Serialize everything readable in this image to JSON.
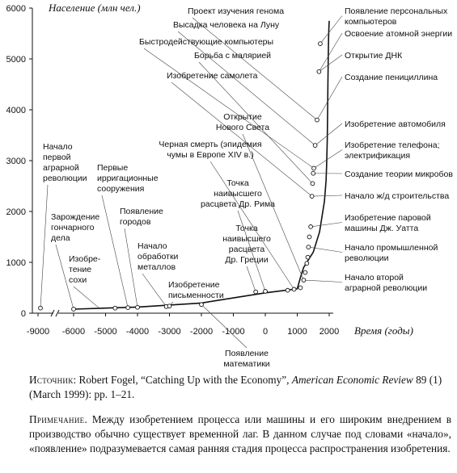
{
  "chart_data": {
    "type": "line",
    "ylabel": "Население (млн чел.)",
    "xlabel": "Время (годы)",
    "xlim": [
      -9000,
      2000
    ],
    "ylim": [
      0,
      6000
    ],
    "x_ticks": [
      -9000,
      -6000,
      -5000,
      -4000,
      -3000,
      -2000,
      -1000,
      0,
      1000,
      2000
    ],
    "x_tick_labels": [
      "-9000",
      "-6000",
      "-5000",
      "-4000",
      "-3000",
      "-2000",
      "-1000",
      "0",
      "1000",
      "2000"
    ],
    "y_ticks": [
      0,
      1000,
      2000,
      3000,
      4000,
      5000,
      6000
    ],
    "axis_break": "between -9000 and -6000",
    "series": [
      {
        "x": [
          -6000,
          -5000,
          -4000,
          -3000,
          -2000,
          -1000,
          0,
          500,
          1000,
          1100,
          1200,
          1300,
          1400,
          1500,
          1600,
          1700,
          1750,
          1800,
          1850,
          1900,
          1920,
          1940,
          1950,
          1960,
          1970,
          1980,
          1990,
          2000
        ],
        "y": [
          80,
          100,
          120,
          160,
          200,
          300,
          400,
          440,
          480,
          700,
          900,
          1000,
          1100,
          1200,
          1400,
          1600,
          1800,
          2000,
          2200,
          2600,
          2900,
          3400,
          3900,
          4500,
          5000,
          5400,
          5600,
          5750
        ]
      }
    ],
    "points": [
      {
        "x": -8700,
        "y": 100
      },
      {
        "x": -6000,
        "y": 80
      },
      {
        "x": -4700,
        "y": 100
      },
      {
        "x": -4300,
        "y": 110
      },
      {
        "x": -4000,
        "y": 115
      },
      {
        "x": -3100,
        "y": 130
      },
      {
        "x": -3000,
        "y": 140
      },
      {
        "x": -2000,
        "y": 170
      },
      {
        "x": -300,
        "y": 420
      },
      {
        "x": 0,
        "y": 430
      },
      {
        "x": 700,
        "y": 450
      },
      {
        "x": 900,
        "y": 470
      },
      {
        "x": 1100,
        "y": 500
      },
      {
        "x": 1200,
        "y": 650
      },
      {
        "x": 1250,
        "y": 800
      },
      {
        "x": 1300,
        "y": 980
      },
      {
        "x": 1330,
        "y": 1100
      },
      {
        "x": 1350,
        "y": 1300
      },
      {
        "x": 1380,
        "y": 1500
      },
      {
        "x": 1420,
        "y": 1700
      },
      {
        "x": 1460,
        "y": 2300
      },
      {
        "x": 1480,
        "y": 2550
      },
      {
        "x": 1500,
        "y": 2750
      },
      {
        "x": 1520,
        "y": 2850
      },
      {
        "x": 1560,
        "y": 3300
      },
      {
        "x": 1620,
        "y": 3800
      },
      {
        "x": 1680,
        "y": 4750
      },
      {
        "x": 1720,
        "y": 5300
      }
    ],
    "annotations": [
      {
        "lines": [
          "Начало",
          "первой",
          "аграрной",
          "революции"
        ],
        "x": -8700,
        "y": 100
      },
      {
        "lines": [
          "Зарождение",
          "гончарного",
          "дела"
        ],
        "x": -6000,
        "y": 80
      },
      {
        "lines": [
          "Изобре-",
          "тение",
          "сохи"
        ],
        "x": -5200,
        "y": 100
      },
      {
        "lines": [
          "Первые",
          "ирригационные",
          "сооружения"
        ],
        "x": -4300,
        "y": 110
      },
      {
        "lines": [
          "Появление",
          "городов"
        ],
        "x": -4000,
        "y": 115
      },
      {
        "lines": [
          "Начало",
          "обработки",
          "металлов"
        ],
        "x": -3100,
        "y": 130
      },
      {
        "lines": [
          "Изобретение",
          "письменности"
        ],
        "x": -3000,
        "y": 140
      },
      {
        "lines": [
          "Появление",
          "математики"
        ],
        "x": -2000,
        "y": 170
      },
      {
        "lines": [
          "Точка",
          "наивысшего",
          "расцвета",
          "Др. Греции"
        ],
        "x": -300,
        "y": 420
      },
      {
        "lines": [
          "Точка",
          "наивысшего",
          "расцвета Др. Рима"
        ],
        "x": 0,
        "y": 430
      },
      {
        "lines": [
          "Черная смерть (эпидемия",
          "чумы в Европе XIV в.)"
        ],
        "x": 900,
        "y": 470
      },
      {
        "lines": [
          "Открытие",
          "Нового Света"
        ],
        "x": 1200,
        "y": 650
      },
      {
        "lines": [
          "Изобретение самолета"
        ],
        "x": 1460,
        "y": 2300
      },
      {
        "lines": [
          "Борьба с малярией"
        ],
        "x": 1480,
        "y": 2550
      },
      {
        "lines": [
          "Быстродействующие компьютеры"
        ],
        "x": 1520,
        "y": 2850
      },
      {
        "lines": [
          "Высадка человека на Луну"
        ],
        "x": 1560,
        "y": 3300
      },
      {
        "lines": [
          "Проект изучения генома"
        ],
        "x": 1620,
        "y": 3800
      },
      {
        "lines": [
          "Появление персональных",
          "компьютеров"
        ],
        "x": 1720,
        "y": 5300
      },
      {
        "lines": [
          "Освоение атомной энергии"
        ],
        "x": 1680,
        "y": 4750
      },
      {
        "lines": [
          "Открытие ДНК"
        ],
        "x": 1680,
        "y": 4750
      },
      {
        "lines": [
          "Создание пенициллина"
        ],
        "x": 1620,
        "y": 3800
      },
      {
        "lines": [
          "Изобретение автомобиля"
        ],
        "x": 1560,
        "y": 3300
      },
      {
        "lines": [
          "Изобретение телефона;",
          "электрификация"
        ],
        "x": 1520,
        "y": 2850
      },
      {
        "lines": [
          "Создание теории микробов"
        ],
        "x": 1500,
        "y": 2750
      },
      {
        "lines": [
          "Начало ж/д строительства"
        ],
        "x": 1460,
        "y": 2300
      },
      {
        "lines": [
          "Изобретение паровой",
          "машины Дж. Уатта"
        ],
        "x": 1420,
        "y": 1700
      },
      {
        "lines": [
          "Начало промышленной",
          "революции"
        ],
        "x": 1350,
        "y": 1300
      },
      {
        "lines": [
          "Начало второй",
          "аграрной революции"
        ],
        "x": 1200,
        "y": 650
      }
    ]
  },
  "caption": {
    "source_label": "Источник",
    "source_text": ": Robert Fogel, “Catching Up with the Economy”, ",
    "source_journal": "American Economic Review",
    "source_tail": " 89 (1) (March 1999): pp. 1–21.",
    "note_label": "Примечание",
    "note_text": ". Между изобретением процесса или машины и его широким внедрением в производство обычно существует временной лаг. В данном случае под словами «начало», «появление» подразумевается самая ранняя стадия процесса распространения изобретения."
  }
}
